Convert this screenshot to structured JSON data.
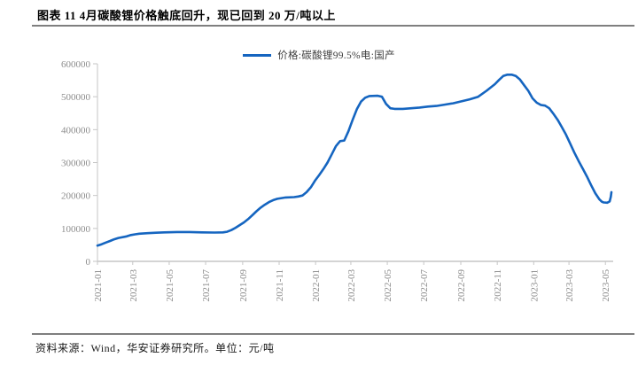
{
  "header": {
    "title": "图表 11 4月碳酸锂价格触底回升，现已回到 20 万/吨以上"
  },
  "footer": {
    "source_note": "资料来源：Wind，华安证券研究所。单位：元/吨"
  },
  "colors": {
    "line": "#1565C0",
    "rule": "#7F7F7F",
    "axis": "#C6C6C6",
    "tick_text": "#8C8C8C",
    "legend_text": "#404040"
  },
  "chart_data": {
    "type": "line",
    "title": "图表 11 4月碳酸锂价格触底回升，现已回到 20 万/吨以上",
    "xlabel": "",
    "ylabel": "",
    "unit": "元/吨",
    "grid": false,
    "legend_position": "top",
    "ylim": [
      0,
      600000
    ],
    "yticks": [
      0,
      100000,
      200000,
      300000,
      400000,
      500000,
      600000
    ],
    "x_domain": [
      "2021-01-01",
      "2023-05-14"
    ],
    "xticks": [
      "2021-01",
      "2021-03",
      "2021-05",
      "2021-07",
      "2021-09",
      "2021-11",
      "2022-01",
      "2022-03",
      "2022-05",
      "2022-07",
      "2022-09",
      "2022-11",
      "2023-01",
      "2023-03",
      "2023-05"
    ],
    "series": [
      {
        "name": "价格:碳酸锂99.5%电:国产",
        "color": "#1565C0",
        "points": [
          [
            "2021-01-01",
            48000
          ],
          [
            "2021-01-08",
            52000
          ],
          [
            "2021-01-15",
            57000
          ],
          [
            "2021-01-22",
            62000
          ],
          [
            "2021-01-29",
            67000
          ],
          [
            "2021-02-05",
            71000
          ],
          [
            "2021-02-19",
            76000
          ],
          [
            "2021-02-26",
            80000
          ],
          [
            "2021-03-05",
            82000
          ],
          [
            "2021-03-12",
            84000
          ],
          [
            "2021-03-26",
            85500
          ],
          [
            "2021-04-09",
            87000
          ],
          [
            "2021-04-23",
            88000
          ],
          [
            "2021-05-14",
            89000
          ],
          [
            "2021-06-04",
            89000
          ],
          [
            "2021-06-25",
            88000
          ],
          [
            "2021-07-16",
            87500
          ],
          [
            "2021-07-30",
            88000
          ],
          [
            "2021-08-06",
            90000
          ],
          [
            "2021-08-13",
            95000
          ],
          [
            "2021-08-20",
            102000
          ],
          [
            "2021-08-27",
            110000
          ],
          [
            "2021-09-03",
            118000
          ],
          [
            "2021-09-10",
            128000
          ],
          [
            "2021-09-17",
            140000
          ],
          [
            "2021-09-24",
            152000
          ],
          [
            "2021-10-01",
            163000
          ],
          [
            "2021-10-08",
            172000
          ],
          [
            "2021-10-15",
            180000
          ],
          [
            "2021-10-22",
            186000
          ],
          [
            "2021-10-29",
            190000
          ],
          [
            "2021-11-05",
            192000
          ],
          [
            "2021-11-12",
            194000
          ],
          [
            "2021-11-26",
            195000
          ],
          [
            "2021-12-03",
            197000
          ],
          [
            "2021-12-10",
            200000
          ],
          [
            "2021-12-17",
            210000
          ],
          [
            "2021-12-24",
            225000
          ],
          [
            "2021-12-31",
            245000
          ],
          [
            "2022-01-07",
            262000
          ],
          [
            "2022-01-14",
            280000
          ],
          [
            "2022-01-21",
            300000
          ],
          [
            "2022-01-28",
            325000
          ],
          [
            "2022-02-04",
            350000
          ],
          [
            "2022-02-11",
            365000
          ],
          [
            "2022-02-18",
            367000
          ],
          [
            "2022-02-25",
            395000
          ],
          [
            "2022-03-04",
            430000
          ],
          [
            "2022-03-11",
            462000
          ],
          [
            "2022-03-18",
            485000
          ],
          [
            "2022-03-25",
            497000
          ],
          [
            "2022-04-01",
            502000
          ],
          [
            "2022-04-15",
            503000
          ],
          [
            "2022-04-22",
            500000
          ],
          [
            "2022-04-29",
            478000
          ],
          [
            "2022-05-06",
            465000
          ],
          [
            "2022-05-13",
            463000
          ],
          [
            "2022-05-27",
            463000
          ],
          [
            "2022-06-10",
            465000
          ],
          [
            "2022-06-24",
            467000
          ],
          [
            "2022-07-08",
            470000
          ],
          [
            "2022-07-22",
            472000
          ],
          [
            "2022-08-05",
            476000
          ],
          [
            "2022-08-19",
            480000
          ],
          [
            "2022-09-02",
            486000
          ],
          [
            "2022-09-16",
            492000
          ],
          [
            "2022-09-30",
            500000
          ],
          [
            "2022-10-14",
            518000
          ],
          [
            "2022-10-28",
            538000
          ],
          [
            "2022-11-04",
            551000
          ],
          [
            "2022-11-11",
            563000
          ],
          [
            "2022-11-18",
            567000
          ],
          [
            "2022-11-25",
            567000
          ],
          [
            "2022-12-02",
            563000
          ],
          [
            "2022-12-09",
            552000
          ],
          [
            "2022-12-16",
            535000
          ],
          [
            "2022-12-23",
            518000
          ],
          [
            "2022-12-30",
            495000
          ],
          [
            "2023-01-06",
            482000
          ],
          [
            "2023-01-13",
            475000
          ],
          [
            "2023-01-20",
            473000
          ],
          [
            "2023-01-27",
            465000
          ],
          [
            "2023-02-03",
            448000
          ],
          [
            "2023-02-10",
            430000
          ],
          [
            "2023-02-17",
            408000
          ],
          [
            "2023-02-24",
            385000
          ],
          [
            "2023-03-03",
            358000
          ],
          [
            "2023-03-10",
            330000
          ],
          [
            "2023-03-17",
            305000
          ],
          [
            "2023-03-24",
            282000
          ],
          [
            "2023-03-31",
            258000
          ],
          [
            "2023-04-07",
            232000
          ],
          [
            "2023-04-14",
            207000
          ],
          [
            "2023-04-21",
            188000
          ],
          [
            "2023-04-25",
            181000
          ],
          [
            "2023-04-28",
            179000
          ],
          [
            "2023-05-04",
            178000
          ],
          [
            "2023-05-08",
            182000
          ],
          [
            "2023-05-10",
            196000
          ],
          [
            "2023-05-11",
            210000
          ]
        ]
      }
    ]
  }
}
